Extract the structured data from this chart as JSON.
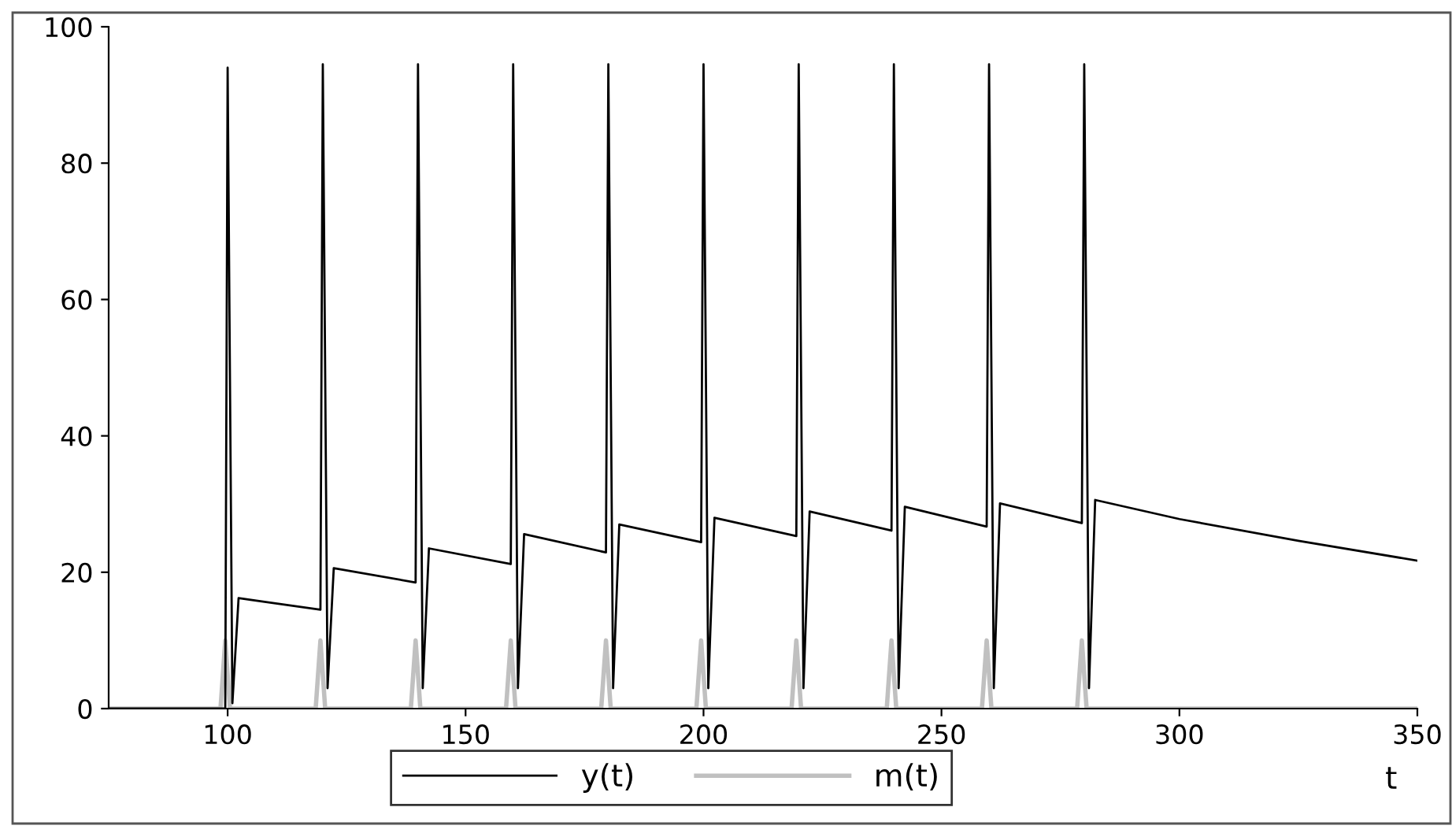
{
  "chart_data": {
    "type": "line",
    "xlabel": "t",
    "xlim": [
      75,
      350
    ],
    "xticks": [
      100,
      150,
      200,
      250,
      300,
      350
    ],
    "ylim": [
      0,
      100
    ],
    "yticks": [
      0,
      20,
      40,
      60,
      80,
      100
    ],
    "grid": false,
    "legend": "bottom",
    "marker": "none",
    "line_style": "solid",
    "series": [
      {
        "name": "y(t)",
        "color": "#000000",
        "x": [
          75,
          99.5,
          100,
          101,
          102.3,
          119.5,
          120,
          121,
          122.3,
          139.5,
          140,
          141,
          142.3,
          159.5,
          160,
          161,
          162.3,
          179.5,
          180,
          181,
          182.3,
          199.5,
          200,
          201,
          202.3,
          219.5,
          220,
          221,
          222.3,
          239.5,
          240,
          241,
          242.3,
          259.5,
          260,
          261,
          262.3,
          279.5,
          280,
          281,
          282.3,
          300,
          325,
          350
        ],
        "values": [
          0,
          0,
          94,
          0.8,
          16.2,
          14.5,
          94.5,
          3,
          20.6,
          18.5,
          94.5,
          3,
          23.5,
          21.2,
          94.5,
          3,
          25.6,
          22.9,
          94.5,
          3,
          27.0,
          24.4,
          94.5,
          3,
          28.0,
          25.3,
          94.5,
          3,
          28.9,
          26.1,
          94.5,
          3,
          29.6,
          26.7,
          94.5,
          3,
          30.1,
          27.2,
          94.5,
          3,
          30.6,
          27.8,
          24.6,
          21.7
        ]
      },
      {
        "name": "m(t)",
        "color": "#c0c0c0",
        "x": [
          75,
          98.5,
          99.5,
          100.5,
          118.5,
          119.5,
          120.5,
          138.5,
          139.5,
          140.5,
          158.5,
          159.5,
          160.5,
          178.5,
          179.5,
          180.5,
          198.5,
          199.5,
          200.5,
          218.5,
          219.5,
          220.5,
          238.5,
          239.5,
          240.5,
          258.5,
          259.5,
          260.5,
          278.5,
          279.5,
          280.5,
          350
        ],
        "values": [
          0,
          0,
          10,
          0,
          0,
          10,
          0,
          0,
          10,
          0,
          0,
          10,
          0,
          0,
          10,
          0,
          0,
          10,
          0,
          0,
          10,
          0,
          0,
          10,
          0,
          0,
          10,
          0,
          0,
          10,
          0,
          0
        ]
      }
    ]
  }
}
